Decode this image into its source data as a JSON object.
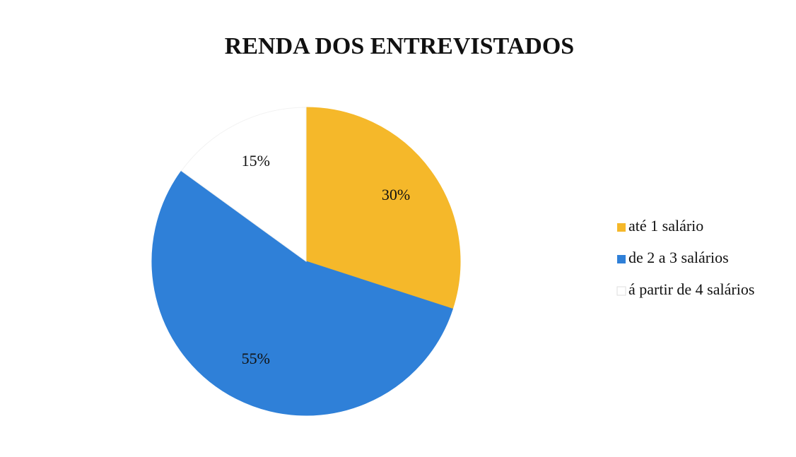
{
  "chart_data": {
    "type": "pie",
    "title": "RENDA DOS ENTREVISTADOS",
    "categories": [
      "até 1 salário",
      "de 2 a 3 salários",
      "á partir de 4 salários"
    ],
    "values": [
      30,
      55,
      15
    ],
    "value_labels": [
      "30%",
      "55%",
      "15%"
    ],
    "colors": [
      "#f5b82a",
      "#2f80d8",
      "#ffffff"
    ],
    "legend": "right"
  }
}
